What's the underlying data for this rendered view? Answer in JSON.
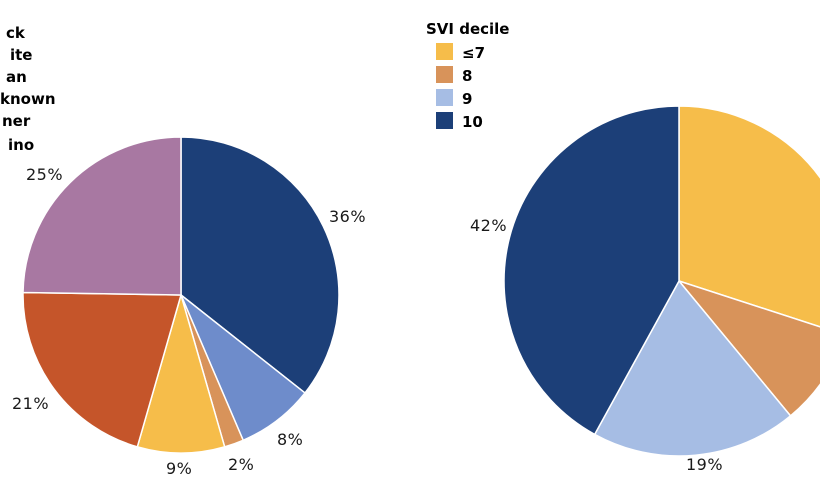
{
  "chart_data": [
    {
      "type": "pie",
      "legend": {
        "entries": [
          "ck",
          "ite",
          "an",
          "known",
          "ner",
          "ino"
        ]
      },
      "slices": [
        {
          "label": "",
          "value": 36,
          "display": "36%",
          "color": "#1c3f78"
        },
        {
          "label": "",
          "value": 8,
          "display": "8%",
          "color": "#6e8ccb"
        },
        {
          "label": "",
          "value": 2,
          "display": "2%",
          "color": "#d8935a"
        },
        {
          "label": "",
          "value": 9,
          "display": "9%",
          "color": "#f6bd4a"
        },
        {
          "label": "",
          "value": 21,
          "display": "21%",
          "color": "#c5552a"
        },
        {
          "label": "",
          "value": 25,
          "display": "25%",
          "color": "#a878a2"
        }
      ]
    },
    {
      "type": "pie",
      "legend": {
        "title": "SVI decile",
        "entries": [
          {
            "label": "≤7",
            "color": "#f6bd4a"
          },
          {
            "label": "8",
            "color": "#d8935a"
          },
          {
            "label": "9",
            "color": "#a6bde4"
          },
          {
            "label": "10",
            "color": "#1c3f78"
          }
        ]
      },
      "slices": [
        {
          "label": "≤7",
          "value": 30,
          "display": "",
          "color": "#f6bd4a"
        },
        {
          "label": "8",
          "value": 9,
          "display": "",
          "color": "#d8935a"
        },
        {
          "label": "9",
          "value": 19,
          "display": "19%",
          "color": "#a6bde4"
        },
        {
          "label": "10",
          "value": 42,
          "display": "42%",
          "color": "#1c3f78"
        }
      ]
    }
  ]
}
